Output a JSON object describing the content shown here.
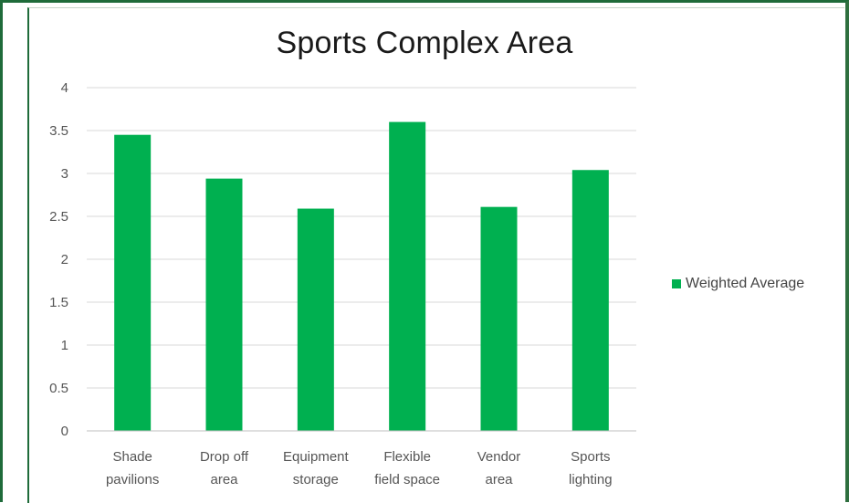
{
  "chart_data": {
    "type": "bar",
    "title": "Sports Complex Area",
    "categories": [
      [
        "Shade",
        "pavilions"
      ],
      [
        "Drop off",
        "area"
      ],
      [
        "Equipment",
        "storage"
      ],
      [
        "Flexible",
        "field space"
      ],
      [
        "Vendor",
        "area"
      ],
      [
        "Sports",
        "lighting"
      ]
    ],
    "series": [
      {
        "name": "Weighted Average",
        "values": [
          3.45,
          2.94,
          2.59,
          3.6,
          2.61,
          3.04
        ],
        "color": "#00b050"
      }
    ],
    "ylim": [
      0,
      4
    ],
    "yticks": [
      "0",
      "0.5",
      "1",
      "1.5",
      "2",
      "2.5",
      "3",
      "3.5",
      "4"
    ],
    "grid": true,
    "legend_position": "right"
  }
}
